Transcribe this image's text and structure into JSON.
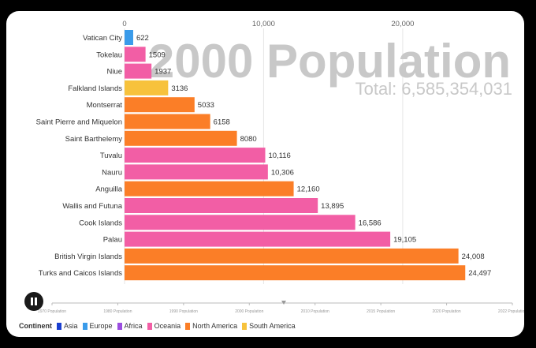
{
  "chart_data": {
    "type": "bar",
    "orientation": "horizontal",
    "title": "",
    "year_label": "2000 Population",
    "total_label": "Total: 6,585,354,031",
    "xlim": [
      0,
      24500
    ],
    "x_ticks": [
      {
        "value": 0,
        "label": "0"
      },
      {
        "value": 10000,
        "label": "10,000"
      },
      {
        "value": 20000,
        "label": "20,000"
      }
    ],
    "grid": true,
    "categories": [
      "Vatican City",
      "Tokelau",
      "Niue",
      "Falkland Islands",
      "Montserrat",
      "Saint Pierre and Miquelon",
      "Saint Barthelemy",
      "Tuvalu",
      "Nauru",
      "Anguilla",
      "Wallis and Futuna",
      "Cook Islands",
      "Palau",
      "British Virgin Islands",
      "Turks and Caicos Islands"
    ],
    "values": [
      622,
      1509,
      1937,
      3136,
      5033,
      6158,
      8080,
      10116,
      10306,
      12160,
      13895,
      16586,
      19105,
      24008,
      24497
    ],
    "value_labels": [
      "622",
      "1509",
      "1937",
      "3136",
      "5033",
      "6158",
      "8080",
      "10,116",
      "10,306",
      "12,160",
      "13,895",
      "16,586",
      "19,105",
      "24,008",
      "24,497"
    ],
    "continents": [
      "Europe",
      "Oceania",
      "Oceania",
      "South America",
      "North America",
      "North America",
      "North America",
      "Oceania",
      "Oceania",
      "North America",
      "Oceania",
      "Oceania",
      "Oceania",
      "North America",
      "North America"
    ],
    "legend": {
      "title": "Continent",
      "placement": "bottom-left",
      "items": [
        {
          "name": "Asia",
          "color": "#1a3fd0"
        },
        {
          "name": "Europe",
          "color": "#3a9bea"
        },
        {
          "name": "Africa",
          "color": "#9b4de0"
        },
        {
          "name": "Oceania",
          "color": "#f25ea5"
        },
        {
          "name": "North America",
          "color": "#fb7e27"
        },
        {
          "name": "South America",
          "color": "#f7c23c"
        }
      ]
    },
    "timeline_ticks": [
      "1970 Population",
      "1980 Population",
      "1990 Population",
      "2000 Population",
      "2010 Population",
      "2015 Population",
      "2020 Population",
      "2022 Population"
    ]
  },
  "controls": {
    "pause_icon": "pause-icon"
  }
}
